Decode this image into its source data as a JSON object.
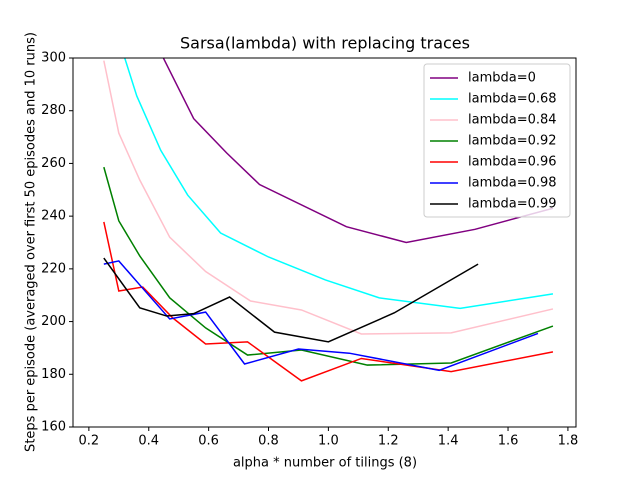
{
  "chart_data": {
    "type": "line",
    "title": "Sarsa(lambda) with replacing traces",
    "x_label": "alpha * number of tilings (8)",
    "y_label": "Steps per episode (averaged over first 50 episodes and 10 runs)",
    "xlim": [
      0.147,
      1.827
    ],
    "ylim": [
      160,
      300
    ],
    "xticks": [
      0.2,
      0.4,
      0.6,
      0.8,
      {
        "value": 1,
        "label": "1.0"
      },
      1.2,
      1.4,
      1.6,
      1.8
    ],
    "yticks": [
      160,
      180,
      200,
      220,
      240,
      260,
      280,
      300
    ],
    "legend": "upper right",
    "series": [
      {
        "name": "lambda=0",
        "color": "#800080",
        "x": [
          0.44,
          0.55,
          0.66,
          0.77,
          1.06,
          1.26,
          1.49,
          1.75
        ],
        "values": [
          302,
          277,
          264,
          252,
          236,
          230,
          235,
          243
        ]
      },
      {
        "name": "lambda=0.68",
        "color": "#00ffff",
        "x": [
          0.25,
          0.36,
          0.44,
          0.53,
          0.64,
          0.8,
          0.99,
          1.17,
          1.44,
          1.75
        ],
        "values": [
          325,
          285.6,
          265,
          248,
          233.6,
          224.5,
          215.8,
          209,
          205,
          210.5
        ]
      },
      {
        "name": "lambda=0.84",
        "color": "#ffc0cb",
        "x": [
          0.25,
          0.3,
          0.37,
          0.47,
          0.59,
          0.74,
          0.91,
          1.11,
          1.41,
          1.75
        ],
        "values": [
          299,
          271.5,
          253.7,
          232,
          219,
          207.8,
          204.4,
          195.3,
          195.7,
          204.8
        ]
      },
      {
        "name": "lambda=0.92",
        "color": "#008000",
        "x": [
          0.25,
          0.3,
          0.37,
          0.47,
          0.59,
          0.73,
          0.91,
          1.13,
          1.41,
          1.75
        ],
        "values": [
          258.6,
          238.2,
          224.9,
          209,
          197.6,
          187.3,
          189.2,
          183.5,
          184.3,
          198.3
        ]
      },
      {
        "name": "lambda=0.96",
        "color": "#ff0000",
        "x": [
          0.25,
          0.3,
          0.38,
          0.48,
          0.59,
          0.73,
          0.91,
          1.11,
          1.41,
          1.75
        ],
        "values": [
          237.8,
          211.6,
          213.1,
          201.4,
          191.5,
          192.3,
          177.5,
          186,
          181,
          188.5
        ]
      },
      {
        "name": "lambda=0.98",
        "color": "#0000ff",
        "x": [
          0.25,
          0.3,
          0.37,
          0.47,
          0.59,
          0.72,
          0.9,
          1.07,
          1.37,
          1.7
        ],
        "values": [
          221.8,
          223,
          213.9,
          201,
          203.6,
          183.9,
          189.6,
          188,
          181.5,
          195.5
        ]
      },
      {
        "name": "lambda=0.99",
        "color": "#000000",
        "x": [
          0.25,
          0.37,
          0.46,
          0.55,
          0.67,
          0.82,
          1.0,
          1.22,
          1.5
        ],
        "values": [
          224.1,
          205.2,
          202.1,
          203,
          209.3,
          196,
          192.3,
          203.3,
          221.8
        ]
      }
    ]
  }
}
